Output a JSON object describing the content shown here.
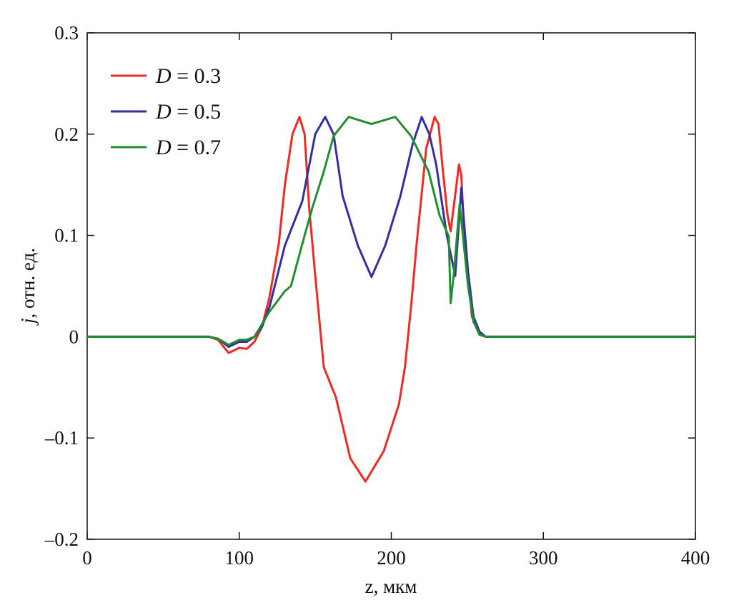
{
  "chart_data": {
    "type": "line",
    "title": "",
    "xlabel": "z, мкм",
    "ylabel_italic": "j",
    "ylabel_rest": ", отн. ед.",
    "xlim": [
      0,
      400
    ],
    "ylim": [
      -0.2,
      0.3
    ],
    "xticks": [
      0,
      100,
      200,
      300,
      400
    ],
    "xtick_labels": [
      "0",
      "100",
      "200",
      "300",
      "400"
    ],
    "yticks": [
      -0.2,
      -0.1,
      0,
      0.1,
      0.2,
      0.3
    ],
    "ytick_labels": [
      "–0.2",
      "–0.1",
      "0",
      "0.1",
      "0.2",
      "0.3"
    ],
    "grid": false,
    "legend_placement": "top-left",
    "series": [
      {
        "name": "D = 0.3",
        "name_var": "D",
        "name_rest": " = 0.3",
        "color": "#ee2a24",
        "x": [
          0,
          80,
          86,
          93,
          100,
          105,
          110,
          115,
          120,
          126,
          130,
          135,
          139.6,
          143,
          146,
          150,
          155.6,
          163.6,
          173,
          183,
          195,
          205,
          209,
          213,
          216.7,
          223,
          228.5,
          231,
          234,
          237,
          239,
          242,
          244.5,
          246,
          248,
          253,
          258,
          262,
          400
        ],
        "y": [
          0,
          0,
          -0.003,
          -0.016,
          -0.011,
          -0.012,
          -0.005,
          0.01,
          0.04,
          0.092,
          0.15,
          0.2,
          0.217,
          0.2,
          0.127,
          0.06,
          -0.03,
          -0.06,
          -0.12,
          -0.143,
          -0.113,
          -0.067,
          -0.03,
          0.03,
          0.092,
          0.186,
          0.217,
          0.21,
          0.163,
          0.12,
          0.104,
          0.14,
          0.17,
          0.16,
          0.1,
          0.02,
          0.002,
          0,
          0
        ]
      },
      {
        "name": "D = 0.5",
        "name_var": "D",
        "name_rest": " = 0.5",
        "color": "#3030a0",
        "x": [
          0,
          80,
          86,
          93,
          100,
          105,
          110,
          115,
          120,
          130,
          141.5,
          150,
          156.5,
          162,
          168,
          178,
          187,
          196,
          206,
          214,
          220,
          225,
          229.5,
          236.5,
          242,
          246,
          250.5,
          254,
          258,
          262,
          400
        ],
        "y": [
          0,
          0,
          -0.002,
          -0.01,
          -0.005,
          -0.005,
          0,
          0.01,
          0.03,
          0.09,
          0.134,
          0.2,
          0.217,
          0.2,
          0.139,
          0.09,
          0.059,
          0.09,
          0.139,
          0.19,
          0.217,
          0.2,
          0.17,
          0.1,
          0.06,
          0.147,
          0.064,
          0.02,
          0.005,
          0,
          0
        ]
      },
      {
        "name": "D = 0.7",
        "name_var": "D",
        "name_rest": " = 0.7",
        "color": "#1f8f2f",
        "x": [
          0,
          80,
          86,
          93,
          100,
          105,
          110,
          120,
          130,
          134,
          143,
          148,
          155.6,
          162,
          172,
          187,
          202.6,
          213,
          224.6,
          231.7,
          237.8,
          239,
          241,
          245,
          250.5,
          254,
          258,
          262,
          400
        ],
        "y": [
          0,
          0,
          -0.002,
          -0.008,
          -0.003,
          -0.003,
          0,
          0.025,
          0.045,
          0.05,
          0.1,
          0.127,
          0.163,
          0.198,
          0.217,
          0.21,
          0.217,
          0.198,
          0.163,
          0.12,
          0.099,
          0.033,
          0.06,
          0.131,
          0.05,
          0.015,
          0.002,
          0,
          0
        ]
      }
    ]
  }
}
